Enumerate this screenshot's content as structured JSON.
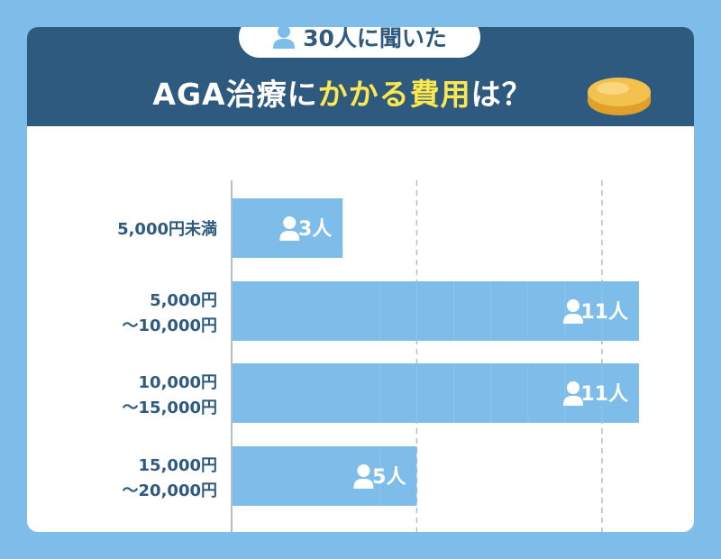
{
  "header": {
    "pill_text": "30人に聞いた",
    "title_prefix": "AGA治療に",
    "title_accent": "かかる費用",
    "title_suffix": "は？"
  },
  "colors": {
    "background": "#7ebdea",
    "header": "#2d5a7e",
    "bar": "#7ebdea",
    "accent": "#ffe74d",
    "coin": "#f0b93a"
  },
  "icons": [
    "person-icon",
    "coin-icon"
  ],
  "chart_data": {
    "type": "bar",
    "orientation": "horizontal",
    "unit": "人",
    "categories": [
      [
        "5,000円未満"
      ],
      [
        "5,000円",
        "～10,000円"
      ],
      [
        "10,000円",
        "～15,000円"
      ],
      [
        "15,000円",
        "～20,000円"
      ]
    ],
    "values": [
      3,
      11,
      11,
      5
    ],
    "value_labels": [
      "3人",
      "11人",
      "11人",
      "5人"
    ],
    "xlim": [
      0,
      11
    ],
    "grid": "vertical dashed"
  }
}
